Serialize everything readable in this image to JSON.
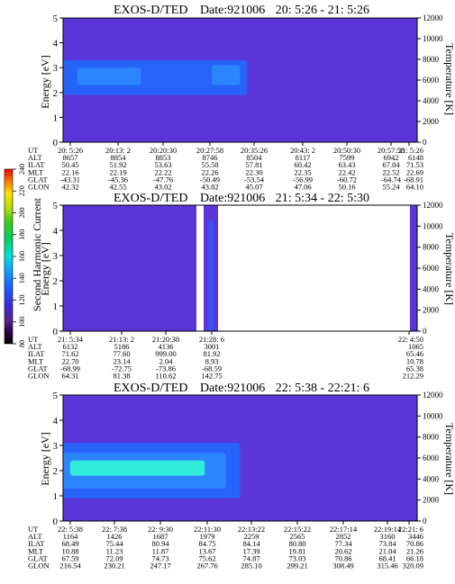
{
  "chart_data": [
    {
      "type": "heatmap",
      "title_instrument": "EXOS-D/TED",
      "title_date": "Date:921006",
      "title_time": "20: 5:26 - 21: 5:26",
      "ylabel": "Energy [eV]",
      "ylabel_right": "Temperature [K]",
      "ylim": [
        0,
        5
      ],
      "yticks": [
        "0",
        "1",
        "2",
        "3",
        "4",
        "5"
      ],
      "ylim_right": [
        0,
        12000
      ],
      "yticks_right": [
        "0",
        "2000",
        "4000",
        "6000",
        "8000",
        "10000",
        "12000"
      ],
      "row_labels": [
        "UT",
        "ALT",
        "ILAT",
        "MLT",
        "GLAT",
        "GLON"
      ],
      "columns": [
        [
          "20: 5:26",
          "8657",
          "50.45",
          "22.16",
          "-43.31",
          "42.32"
        ],
        [
          "20:13: 2",
          "8854",
          "51.92",
          "22.19",
          "-45.36",
          "42.55"
        ],
        [
          "20:20:30",
          "8853",
          "53.63",
          "22.22",
          "-47.76",
          "43.02"
        ],
        [
          "20:27:58",
          "8746",
          "55.58",
          "22.26",
          "-50.49",
          "43.82"
        ],
        [
          "20:35:26",
          "8504",
          "57.81",
          "22.30",
          "-53.54",
          "45.07"
        ],
        [
          "20:43: 2",
          "8117",
          "60.42",
          "22.35",
          "-56.99",
          "47.06"
        ],
        [
          "20:50:30",
          "7599",
          "63.43",
          "22.42",
          "-60.72",
          "50.16"
        ],
        [
          "20:57:58",
          "6942",
          "67.04",
          "22.52",
          "-64.74",
          "55.24"
        ],
        [
          "21: 5:26",
          "6148",
          "71.53",
          "22.69",
          "-68.91",
          "64.10"
        ]
      ],
      "plasma_bands": [
        {
          "x": [
            0.0,
            0.52
          ],
          "energy": [
            1.9,
            3.3
          ],
          "level": 75
        },
        {
          "x": [
            0.04,
            0.22
          ],
          "energy": [
            2.3,
            3.0
          ],
          "level": 105
        },
        {
          "x": [
            0.42,
            0.5
          ],
          "energy": [
            2.3,
            3.1
          ],
          "level": 100
        }
      ],
      "temperature_line": []
    },
    {
      "type": "heatmap",
      "title_instrument": "EXOS-D/TED",
      "title_date": "Date:921006",
      "title_time": "21: 5:34 - 22: 5:30",
      "ylabel": "Energy [eV]",
      "ylabel_right": "Temperature [K]",
      "ylim": [
        0,
        5
      ],
      "yticks": [
        "0",
        "1",
        "2",
        "3",
        "4",
        "5"
      ],
      "ylim_right": [
        0,
        12000
      ],
      "yticks_right": [
        "0",
        "2000",
        "4000",
        "6000",
        "8000",
        "10000",
        "12000"
      ],
      "row_labels": [
        "UT",
        "ALT",
        "ILAT",
        "MLT",
        "GLAT",
        "GLON"
      ],
      "columns": [
        [
          "21: 5:34",
          "6132",
          "71.62",
          "22.70",
          "-68.99",
          "64.31"
        ],
        [
          "21:13: 2",
          "5186",
          "77.60",
          "23.14",
          "-72.75",
          "81.38"
        ],
        [
          "21:20:38",
          "4136",
          "999.00",
          "2.04",
          "-73.86",
          "110.62"
        ],
        [
          "21:28: 6",
          "3001",
          "81.92",
          "8.93",
          "-68.59",
          "142.75"
        ],
        [
          "22: 4:50",
          "1065",
          "65.46",
          "10.78",
          "65.38",
          "212.29"
        ]
      ],
      "plasma_bands": [],
      "temperature_line": []
    },
    {
      "type": "heatmap",
      "title_instrument": "EXOS-D/TED",
      "title_date": "Date:921006",
      "title_time": "22: 5:38 - 22:21: 6",
      "ylabel": "Energy [eV]",
      "ylabel_right": "Temperature [K]",
      "ylim": [
        0,
        5
      ],
      "yticks": [
        "0",
        "1",
        "2",
        "3",
        "4",
        "5"
      ],
      "ylim_right": [
        0,
        12000
      ],
      "yticks_right": [
        "0",
        "2000",
        "4000",
        "6000",
        "8000",
        "10000",
        "12000"
      ],
      "row_labels": [
        "UT",
        "ALT",
        "ILAT",
        "MLT",
        "GLAT",
        "GLON"
      ],
      "columns": [
        [
          "22: 5:38",
          "1164",
          "68.49",
          "10.88",
          "67.59",
          "216.54"
        ],
        [
          "22: 7:38",
          "1426",
          "75.44",
          "11.23",
          "72.09",
          "230.21"
        ],
        [
          "22: 9:30",
          "1687",
          "80.94",
          "11.87",
          "74.73",
          "247.17"
        ],
        [
          "22:11:30",
          "1979",
          "84.75",
          "13.67",
          "75.62",
          "267.76"
        ],
        [
          "22:13:22",
          "2259",
          "84.14",
          "17.39",
          "74.87",
          "285.10"
        ],
        [
          "22:15:22",
          "2565",
          "80.80",
          "19.81",
          "73.03",
          "299.21"
        ],
        [
          "22:17:14",
          "2852",
          "77.34",
          "20.62",
          "70.86",
          "308.49"
        ],
        [
          "22:19:14",
          "3160",
          "73.84",
          "21.04",
          "68.41",
          "315.46"
        ],
        [
          "22:21: 6",
          "3446",
          "70.86",
          "21.26",
          "66.18",
          "320.09"
        ]
      ],
      "plasma_bands": [
        {
          "x": [
            0.0,
            0.5
          ],
          "energy": [
            0.9,
            3.1
          ],
          "level": 80
        },
        {
          "x": [
            0.0,
            0.46
          ],
          "energy": [
            1.3,
            2.7
          ],
          "level": 135
        },
        {
          "x": [
            0.02,
            0.4
          ],
          "energy": [
            1.8,
            2.4
          ],
          "level": 165
        }
      ],
      "temperature_line": []
    }
  ],
  "colorbar": {
    "label": "Second Harmonic Current",
    "range": [
      80,
      240
    ],
    "ticks": [
      "80",
      "100",
      "120",
      "140",
      "160",
      "180",
      "200",
      "220",
      "240"
    ]
  },
  "colors": {
    "background": "#5a35d8",
    "plasma": "#1e6bff",
    "plasma_bright": "#35ffd5"
  }
}
